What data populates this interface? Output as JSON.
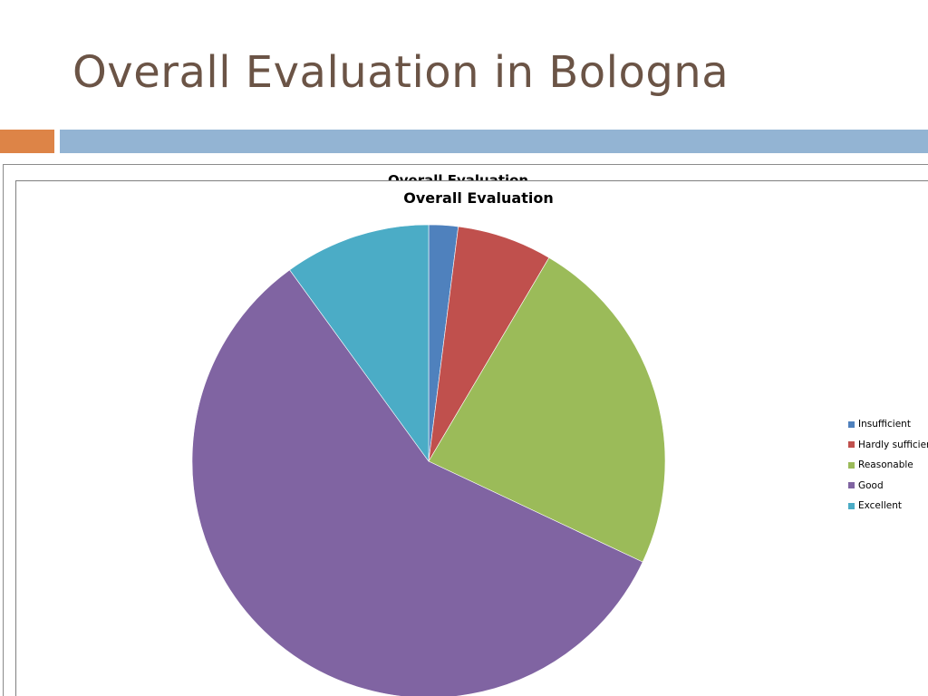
{
  "slide": {
    "title": "Overall Evaluation in Bologna"
  },
  "chart_data": {
    "type": "pie",
    "title": "Overall Evaluation",
    "categories": [
      "Insufficient",
      "Hardly sufficient",
      "Reasonable",
      "Good",
      "Excellent"
    ],
    "values": [
      2,
      6.5,
      23.5,
      58,
      10
    ],
    "unit": "percent",
    "colors": [
      "#4f81bd",
      "#c0504d",
      "#9bbb59",
      "#8064a2",
      "#4bacc6"
    ],
    "legend_position": "right",
    "start_angle": "12 o'clock",
    "direction": "clockwise"
  },
  "colors": {
    "title_text": "#6b5446",
    "accent_orange": "#dd8447",
    "accent_blue": "#93b4d3"
  }
}
